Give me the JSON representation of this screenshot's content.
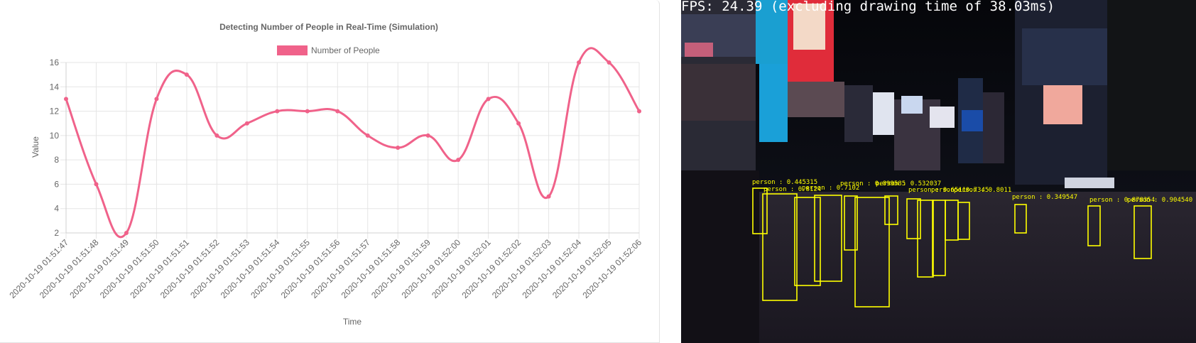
{
  "chart_data": {
    "type": "line",
    "title": "Detecting Number of People in Real-Time (Simulation)",
    "xlabel": "Time",
    "ylabel": "Value",
    "ylim": [
      2,
      16
    ],
    "yticks": [
      2,
      4,
      6,
      8,
      10,
      12,
      14,
      16
    ],
    "grid": true,
    "legend_position": "top",
    "categories": [
      "2020-10-19 01:51:47",
      "2020-10-19 01:51:48",
      "2020-10-19 01:51:49",
      "2020-10-19 01:51:50",
      "2020-10-19 01:51:51",
      "2020-10-19 01:51:52",
      "2020-10-19 01:51:53",
      "2020-10-19 01:51:54",
      "2020-10-19 01:51:55",
      "2020-10-19 01:51:56",
      "2020-10-19 01:51:57",
      "2020-10-19 01:51:58",
      "2020-10-19 01:51:59",
      "2020-10-19 01:52:00",
      "2020-10-19 01:52:01",
      "2020-10-19 01:52:02",
      "2020-10-19 01:52:03",
      "2020-10-19 01:52:04",
      "2020-10-19 01:52:05",
      "2020-10-19 01:52:06"
    ],
    "series": [
      {
        "name": "Number of People",
        "color": "#f0628a",
        "values": [
          13,
          6,
          2,
          13,
          15,
          10,
          11,
          12,
          12,
          12,
          10,
          9,
          10,
          8,
          13,
          11,
          5,
          16,
          16,
          12
        ]
      }
    ]
  },
  "video": {
    "fps_text": "FPS: 24.39 (excluding drawing time of 38.03ms)",
    "box_color": "#ffff00",
    "detections": [
      {
        "label": "person : 0.445315"
      },
      {
        "label": "person : 0.8124"
      },
      {
        "label": "person : 0.7102"
      },
      {
        "label": "person : 0.899585"
      },
      {
        "label": "person : 0.532037"
      },
      {
        "label": "person : 0.6511"
      },
      {
        "label": "person : 0.7345"
      },
      {
        "label": "person : 0.8011"
      },
      {
        "label": "person : 0.349547"
      },
      {
        "label": "person : 0.878354"
      },
      {
        "label": "person : 0.904540"
      }
    ]
  }
}
